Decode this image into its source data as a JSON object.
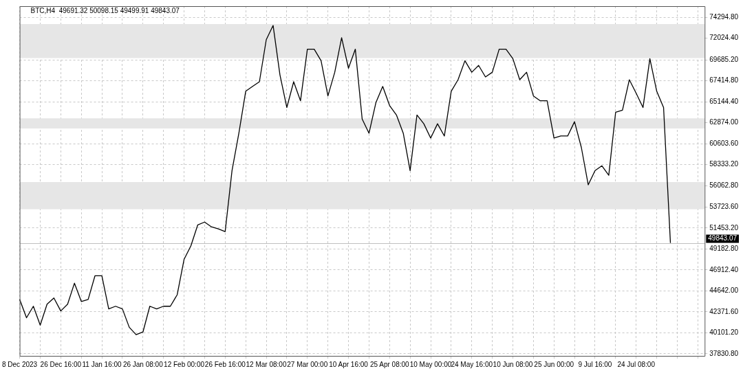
{
  "chart_data": {
    "type": "line",
    "title": "BTC,H4  49691.32 50098.15 49499.91 49843.07",
    "categories": [
      "8 Dec 2023",
      null,
      null,
      null,
      null,
      null,
      "26 Dec 16:00",
      null,
      null,
      null,
      null,
      null,
      "11 Jan 16:00",
      null,
      null,
      null,
      null,
      null,
      "26 Jan 08:00",
      null,
      null,
      null,
      null,
      null,
      "12 Feb 00:00",
      null,
      null,
      null,
      null,
      null,
      "26 Feb 16:00",
      null,
      null,
      null,
      null,
      null,
      "12 Mar 08:00",
      null,
      null,
      null,
      null,
      null,
      "27 Mar 00:00",
      null,
      null,
      null,
      null,
      null,
      "10 Apr 16:00",
      null,
      null,
      null,
      null,
      null,
      "25 Apr 08:00",
      null,
      null,
      null,
      null,
      null,
      "10 May 00:00",
      null,
      null,
      null,
      null,
      null,
      "24 May 16:00",
      null,
      null,
      null,
      null,
      null,
      "10 Jun 08:00",
      null,
      null,
      null,
      null,
      null,
      "25 Jun 00:00",
      null,
      null,
      null,
      null,
      null,
      "9 Jul 16:00",
      null,
      null,
      null,
      null,
      null,
      "24 Jul 08:00",
      null,
      null,
      null,
      null,
      null,
      null,
      null,
      null,
      null,
      null
    ],
    "series": [
      {
        "color": "#000000",
        "values": [
          43720,
          41730,
          42980,
          40930,
          43200,
          43870,
          42470,
          43200,
          45480,
          43500,
          43720,
          46290,
          46290,
          42690,
          42980,
          42690,
          40700,
          39900,
          40190,
          42980,
          42690,
          42980,
          42980,
          44230,
          48060,
          49530,
          51800,
          52100,
          51580,
          51360,
          51070,
          57680,
          61730,
          66280,
          66800,
          67310,
          71870,
          73410,
          68050,
          64520,
          67310,
          65250,
          70840,
          70840,
          69590,
          65770,
          68340,
          72090,
          68780,
          70840,
          63270,
          61730,
          65030,
          66800,
          64740,
          63710,
          61730,
          57680,
          63710,
          62760,
          61210,
          62760,
          61430,
          66280,
          67530,
          69590,
          68340,
          69080,
          67830,
          68340,
          70840,
          70840,
          69810,
          67530,
          68340,
          65770,
          65250,
          65250,
          61210,
          61430,
          61430,
          62980,
          60180,
          56140,
          57680,
          58200,
          57170,
          64000,
          64230,
          67530,
          66060,
          64520,
          69810,
          66280,
          64520,
          49840,
          null,
          null,
          null,
          null,
          null
        ]
      }
    ],
    "ylim": [
      37600,
      75500
    ],
    "yticks": [
      {
        "value": 37830.8,
        "label": "37830.80"
      },
      {
        "value": 40101.2,
        "label": "40101.20"
      },
      {
        "value": 42371.6,
        "label": "42371.60"
      },
      {
        "value": 44642,
        "label": "44642.00"
      },
      {
        "value": 46912.4,
        "label": "46912.40"
      },
      {
        "value": 49182.8,
        "label": "49182.80"
      },
      {
        "value": 51453.2,
        "label": "51453.20"
      },
      {
        "value": 53723.6,
        "label": "53723.60"
      },
      {
        "value": 56062.8,
        "label": "56062.80"
      },
      {
        "value": 58333.2,
        "label": "58333.20"
      },
      {
        "value": 60603.6,
        "label": "60603.60"
      },
      {
        "value": 62874,
        "label": "62874.00"
      },
      {
        "value": 65144.4,
        "label": "65144.40"
      },
      {
        "value": 67414.8,
        "label": "67414.80"
      },
      {
        "value": 69685.2,
        "label": "69685.20"
      },
      {
        "value": 72024.4,
        "label": "72024.40"
      },
      {
        "value": 74294.8,
        "label": "74294.80"
      }
    ],
    "bands": [
      {
        "axis": "y",
        "from": 69885,
        "to": 73560,
        "color": "#e6e6e6"
      },
      {
        "axis": "y",
        "from": 62240,
        "to": 63340,
        "color": "#e6e6e6"
      },
      {
        "axis": "y",
        "from": 53500,
        "to": 56440,
        "color": "#e6e6e6"
      }
    ],
    "ref_lines": [
      {
        "axis": "y",
        "value": 49843.07,
        "label": "49843.07",
        "color": "#c0c0c0"
      }
    ],
    "grid": true,
    "legend": false,
    "marker": "none",
    "line_style": "solid"
  }
}
